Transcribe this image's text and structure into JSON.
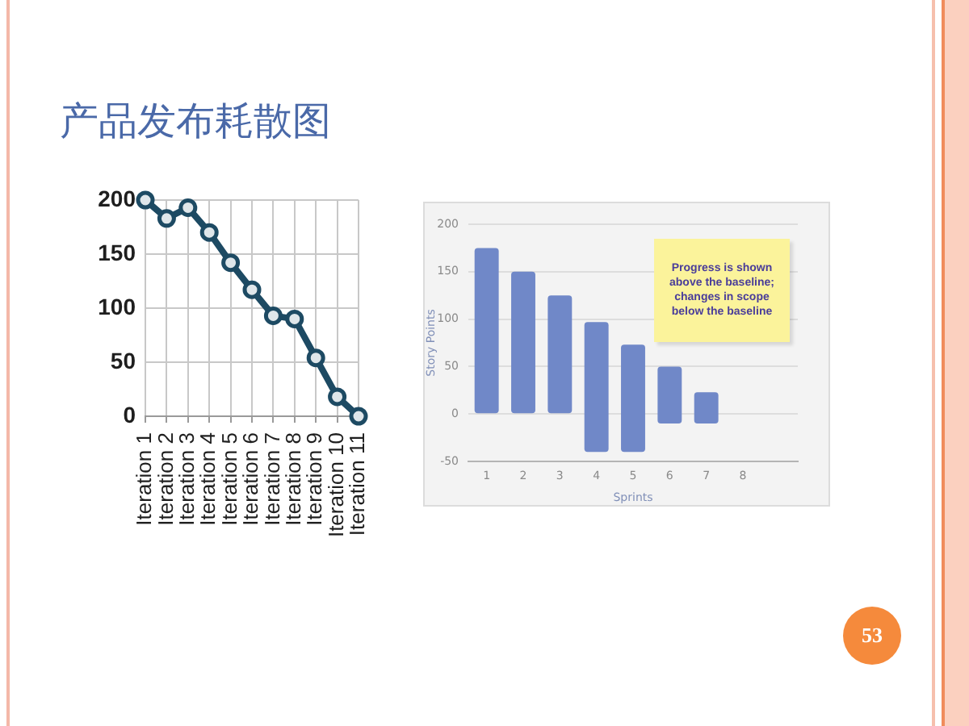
{
  "chart_data": [
    {
      "type": "line",
      "title": "产品发布耗散图",
      "categories": [
        "Iteration 1",
        "Iteration 2",
        "Iteration 3",
        "Iteration 4",
        "Iteration 5",
        "Iteration 6",
        "Iteration 7",
        "Iteration 8",
        "Iteration 9",
        "Iteration 10",
        "Iteration 11"
      ],
      "values": [
        200,
        183,
        193,
        170,
        142,
        117,
        93,
        90,
        54,
        18,
        0
      ],
      "color": "#1d4a63",
      "ylim": [
        0,
        200
      ],
      "yticks": [
        0,
        50,
        100,
        150,
        200
      ],
      "grid": true,
      "marker": "circle"
    },
    {
      "type": "bar",
      "categories": [
        "1",
        "2",
        "3",
        "4",
        "5",
        "6",
        "7",
        "8",
        null
      ],
      "values": [
        175,
        150,
        125,
        137,
        113,
        60,
        33,
        null,
        null
      ],
      "base": [
        0,
        0,
        0,
        -40,
        -40,
        -10,
        -10,
        null,
        null
      ],
      "color": "#7088c8",
      "xlabel": "Sprints",
      "ylabel": "Story Points",
      "ylim": [
        -50,
        200
      ],
      "yticks": [
        -50,
        0,
        50,
        100,
        150,
        200
      ],
      "grid": "y",
      "annotations": [
        "Progress is shown above the baseline; changes in scope below the baseline",
        "53"
      ]
    }
  ]
}
